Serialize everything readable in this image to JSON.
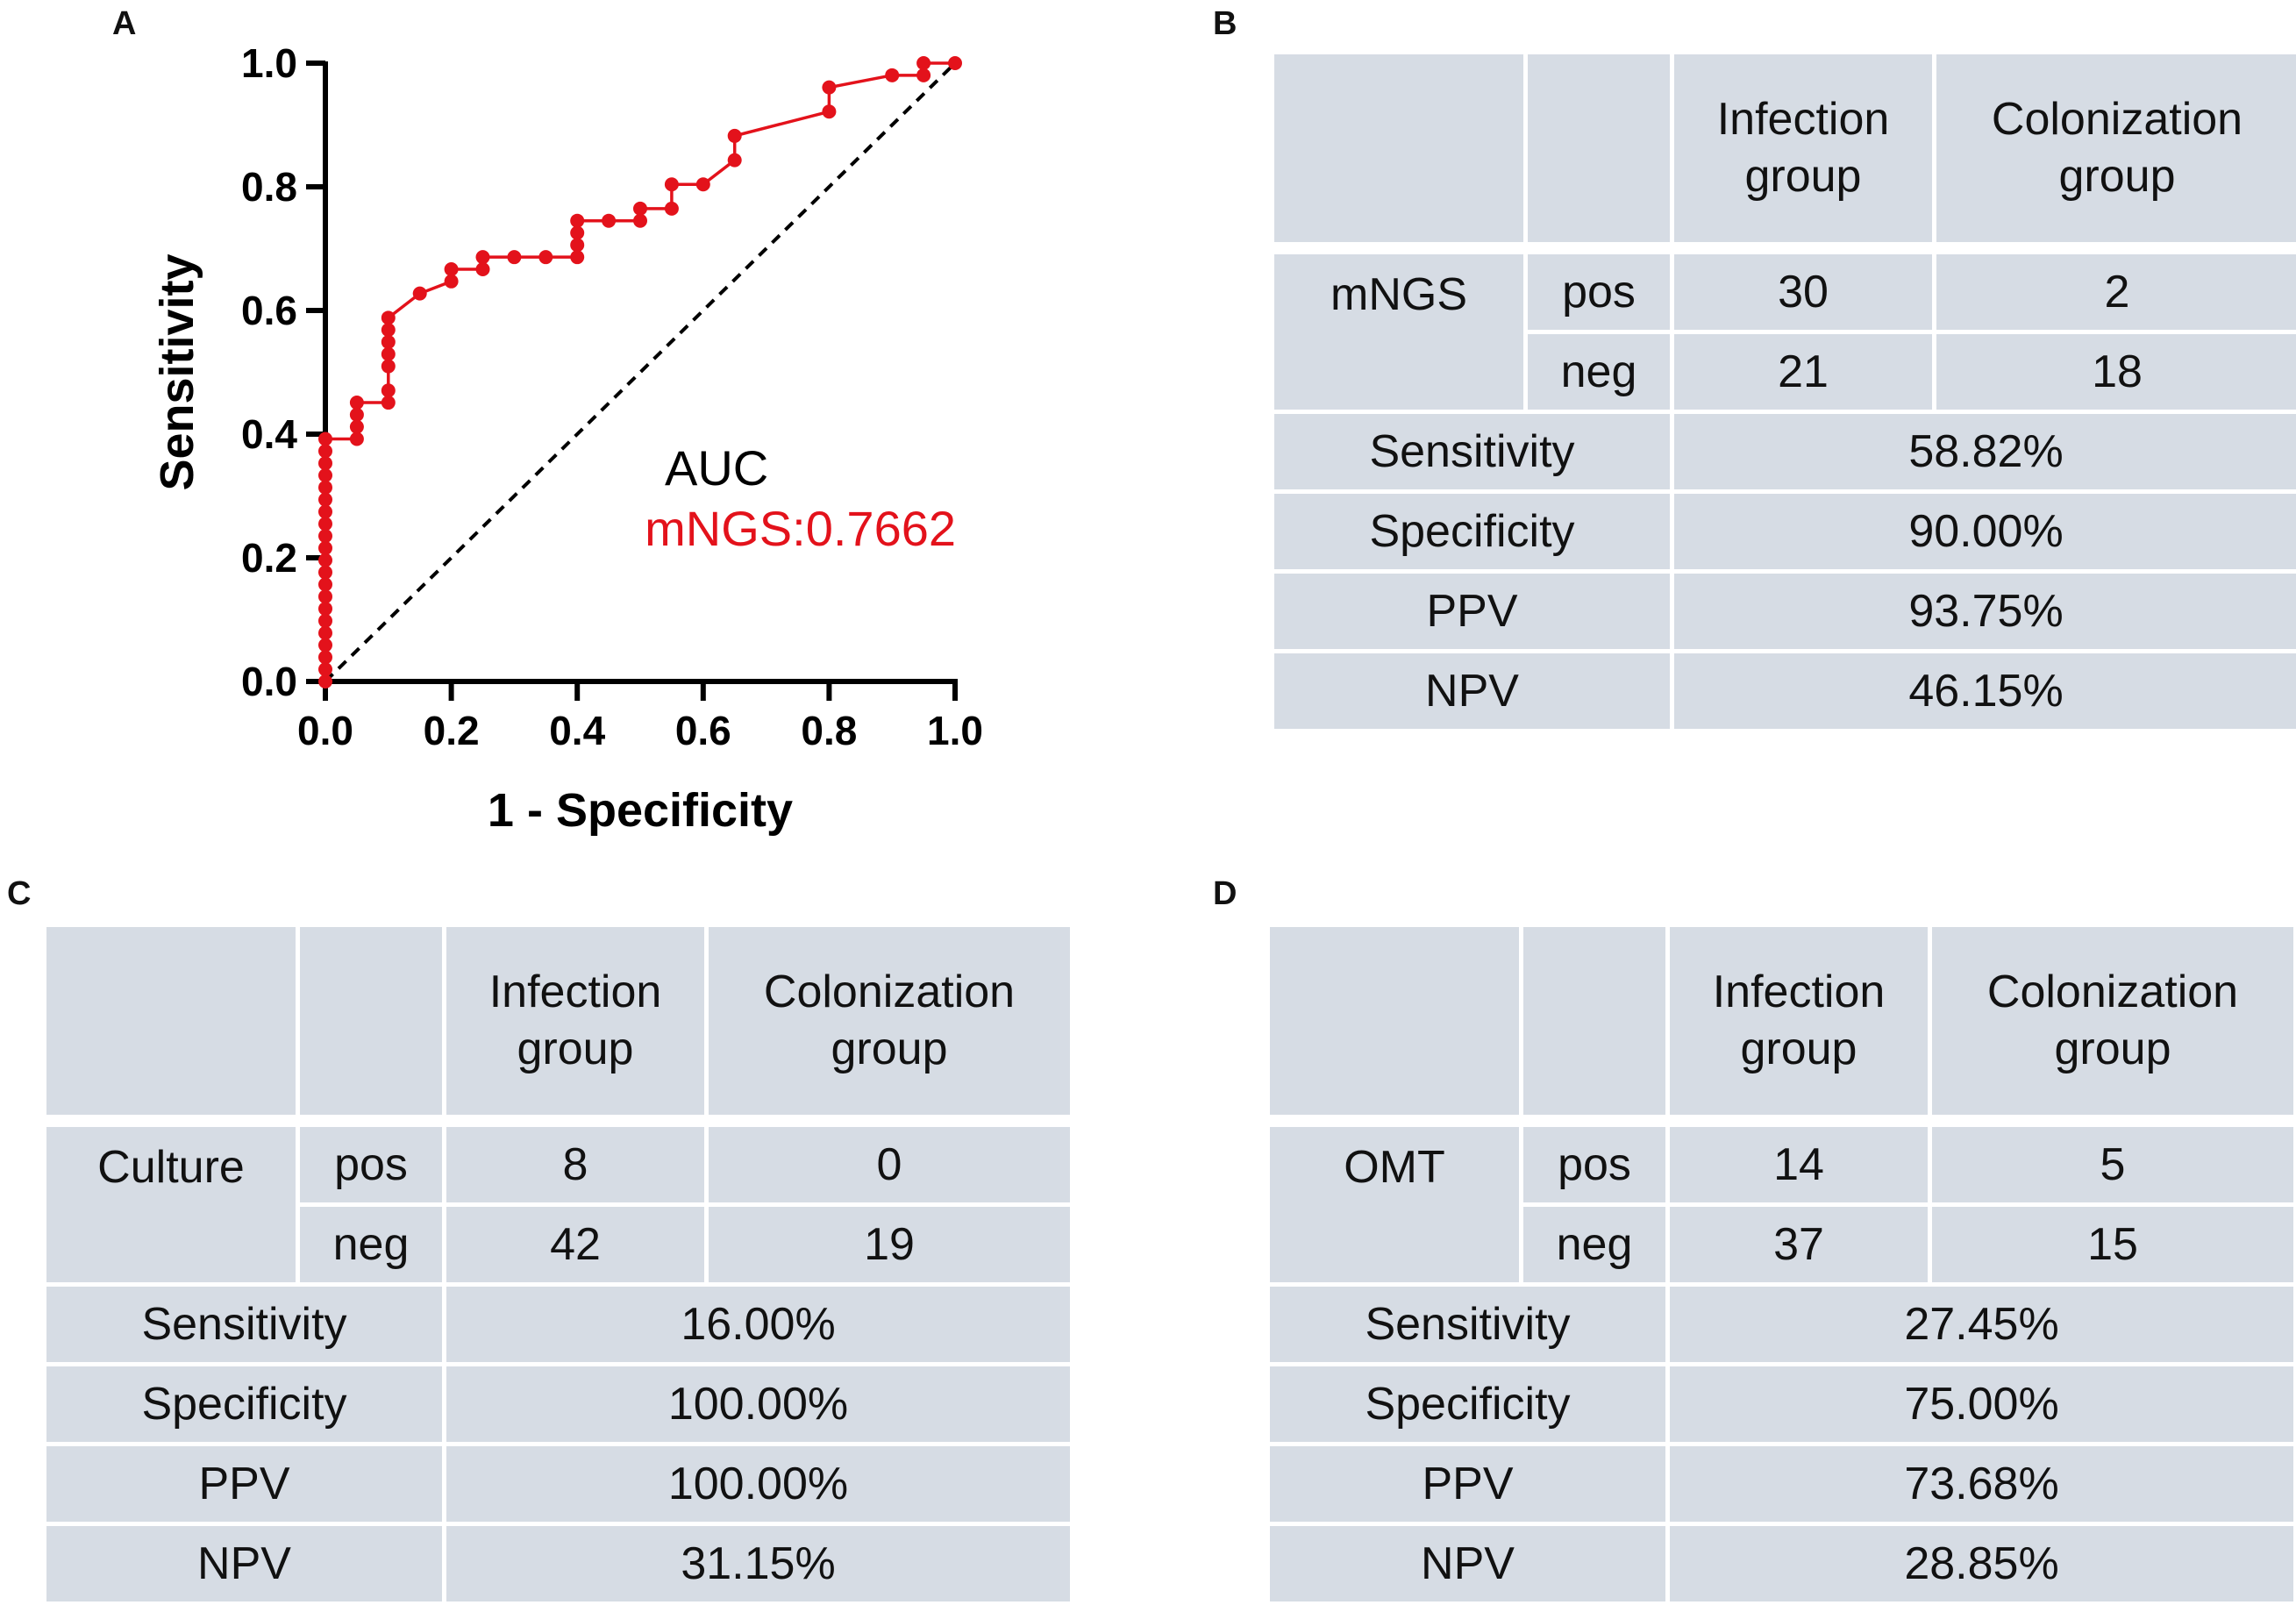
{
  "panels": {
    "a": "A",
    "b": "B",
    "c": "C",
    "d": "D"
  },
  "chart_data": {
    "type": "line",
    "title": "",
    "xlabel": "1 - Specificity",
    "ylabel": "Sensitivity",
    "xlim": [
      0,
      1
    ],
    "ylim": [
      0,
      1
    ],
    "xticks": [
      "0.0",
      "0.2",
      "0.4",
      "0.6",
      "0.8",
      "1.0"
    ],
    "yticks": [
      "0.0",
      "0.2",
      "0.4",
      "0.6",
      "0.8",
      "1.0"
    ],
    "annotation_title": "AUC",
    "series": [
      {
        "name": "mNGS",
        "label": "mNGS:0.7662",
        "color": "#e3121b",
        "x": [
          0,
          0,
          0,
          0,
          0,
          0,
          0,
          0,
          0,
          0,
          0,
          0,
          0,
          0,
          0,
          0,
          0,
          0,
          0,
          0,
          0,
          0.05,
          0.05,
          0.05,
          0.05,
          0.1,
          0.1,
          0.1,
          0.1,
          0.1,
          0.1,
          0.1,
          0.15,
          0.2,
          0.2,
          0.25,
          0.25,
          0.3,
          0.35,
          0.4,
          0.4,
          0.4,
          0.4,
          0.45,
          0.5,
          0.5,
          0.55,
          0.55,
          0.6,
          0.65,
          0.65,
          0.8,
          0.8,
          0.9,
          0.95,
          0.95,
          1.0
        ],
        "y": [
          0,
          0.0196,
          0.0392,
          0.0588,
          0.0784,
          0.098,
          0.1176,
          0.1373,
          0.1569,
          0.1765,
          0.1961,
          0.2157,
          0.2353,
          0.2549,
          0.2745,
          0.2941,
          0.3137,
          0.3333,
          0.3529,
          0.3725,
          0.3922,
          0.3922,
          0.4118,
          0.4314,
          0.451,
          0.451,
          0.4706,
          0.5098,
          0.5294,
          0.549,
          0.5686,
          0.5882,
          0.6275,
          0.6471,
          0.6667,
          0.6667,
          0.6863,
          0.6863,
          0.6863,
          0.6863,
          0.7059,
          0.7255,
          0.7451,
          0.7451,
          0.7451,
          0.7647,
          0.7647,
          0.8039,
          0.8039,
          0.8431,
          0.8824,
          0.9216,
          0.9608,
          0.9804,
          0.9804,
          1.0,
          1.0
        ]
      }
    ],
    "reference_line": "diagonal dashed"
  },
  "tables": [
    {
      "id": "b",
      "test": "mNGS",
      "col_headers": [
        "Infection\ngroup",
        "Colonization\ngroup"
      ],
      "pos_label": "pos",
      "neg_label": "neg",
      "pos": [
        "30",
        "2"
      ],
      "neg": [
        "21",
        "18"
      ],
      "metrics": [
        [
          "Sensitivity",
          "58.82%"
        ],
        [
          "Specificity",
          "90.00%"
        ],
        [
          "PPV",
          "93.75%"
        ],
        [
          "NPV",
          "46.15%"
        ]
      ]
    },
    {
      "id": "c",
      "test": "Culture",
      "col_headers": [
        "Infection\ngroup",
        "Colonization\ngroup"
      ],
      "pos_label": "pos",
      "neg_label": "neg",
      "pos": [
        "8",
        "0"
      ],
      "neg": [
        "42",
        "19"
      ],
      "metrics": [
        [
          "Sensitivity",
          "16.00%"
        ],
        [
          "Specificity",
          "100.00%"
        ],
        [
          "PPV",
          "100.00%"
        ],
        [
          "NPV",
          "31.15%"
        ]
      ]
    },
    {
      "id": "d",
      "test": "OMT",
      "col_headers": [
        "Infection\ngroup",
        "Colonization\ngroup"
      ],
      "pos_label": "pos",
      "neg_label": "neg",
      "pos": [
        "14",
        "5"
      ],
      "neg": [
        "37",
        "15"
      ],
      "metrics": [
        [
          "Sensitivity",
          "27.45%"
        ],
        [
          "Specificity",
          "75.00%"
        ],
        [
          "PPV",
          "73.68%"
        ],
        [
          "NPV",
          "28.85%"
        ]
      ]
    }
  ]
}
